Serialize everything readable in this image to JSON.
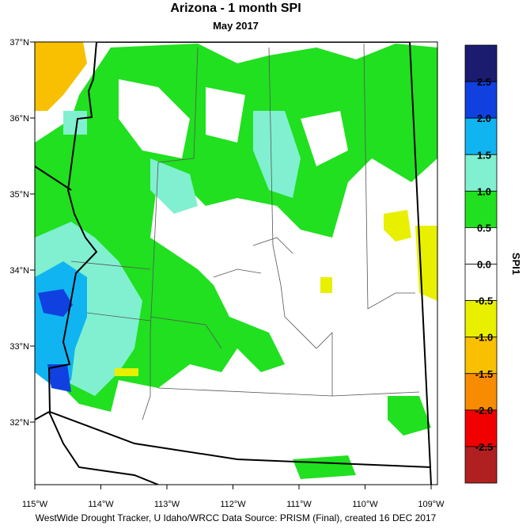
{
  "title": "Arizona - 1 month SPI",
  "subtitle": "May 2017",
  "latitude_labels": [
    "37°N",
    "36°N",
    "35°N",
    "34°N",
    "33°N",
    "32°N"
  ],
  "longitude_labels": [
    "115°W",
    "114°W",
    "113°W",
    "112°W",
    "111°W",
    "110°W",
    "109°W"
  ],
  "colorbar": {
    "label": "SPI1",
    "ticks": [
      "2.5",
      "2.0",
      "1.5",
      "1.0",
      "0.5",
      "0.0",
      "-0.5",
      "-1.0",
      "-1.5",
      "-2.0",
      "-2.5"
    ],
    "colors": [
      "#1b1b70",
      "#1040e0",
      "#10b4f0",
      "#80f0d0",
      "#20e020",
      "#ffffff",
      "#ffffff",
      "#e8f000",
      "#f8c000",
      "#f88c00",
      "#f00000",
      "#b02020"
    ]
  },
  "footer": "WestWide Drought Tracker, U Idaho/WRCC Data Source: PRISM (Final), created 16 DEC 2017"
}
